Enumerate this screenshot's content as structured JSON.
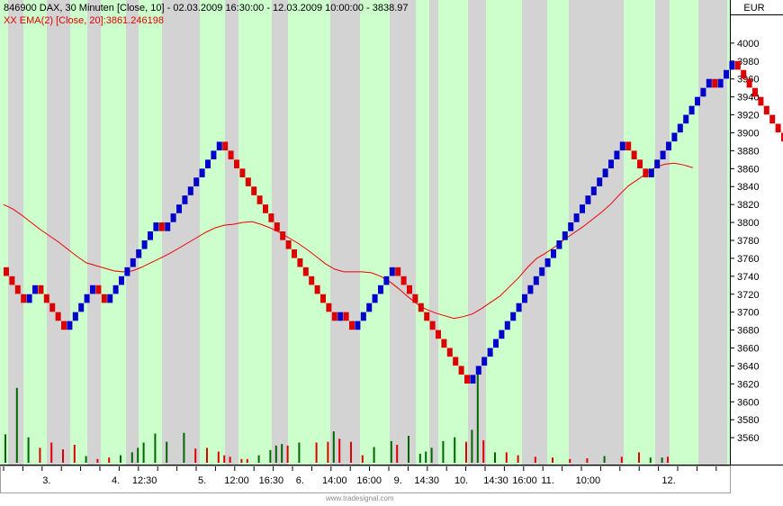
{
  "header": {
    "instrument": "846900  DAX, 30 Minuten [Close, 10] - 02.03.2009 16:30:00 - 12.03.2009 10:00:00 - 3838.97",
    "indicator": "XX EMA(2) [Close, 20]:3861.246198"
  },
  "currency": "EUR",
  "footer": "www.tradesignal.com",
  "colors": {
    "up_brick": "#0000cc",
    "down_brick": "#dd0000",
    "ema_line": "#ee0000",
    "band_light": "#ccffcc",
    "band_gray": "#d3d3d3",
    "volume_up": "#006600",
    "volume_down": "#dd0000"
  },
  "chart_data": {
    "type": "renko",
    "box_size": 10,
    "ylim": [
      3530,
      4030
    ],
    "yticks": [
      3560,
      3580,
      3600,
      3620,
      3640,
      3660,
      3680,
      3700,
      3720,
      3740,
      3760,
      3780,
      3800,
      3820,
      3840,
      3860,
      3880,
      3900,
      3920,
      3940,
      3960,
      3980,
      4000
    ],
    "xtick_labels": [
      {
        "label": "3.",
        "brick": 7
      },
      {
        "label": "4.",
        "brick": 19
      },
      {
        "label": "12:30",
        "brick": 24
      },
      {
        "label": "5.",
        "brick": 34
      },
      {
        "label": "12:00",
        "brick": 40
      },
      {
        "label": "16:30",
        "brick": 46
      },
      {
        "label": "6.",
        "brick": 51
      },
      {
        "label": "14:00",
        "brick": 57
      },
      {
        "label": "16:00",
        "brick": 63
      },
      {
        "label": "9.",
        "brick": 68
      },
      {
        "label": "14:30",
        "brick": 73
      },
      {
        "label": "10.",
        "brick": 79
      },
      {
        "label": "14:30",
        "brick": 85
      },
      {
        "label": "16:00",
        "brick": 90
      },
      {
        "label": "11.",
        "brick": 94
      },
      {
        "label": "10:00",
        "brick": 101
      },
      {
        "label": "12.",
        "brick": 115
      }
    ],
    "bricks": [
      3740,
      3730,
      3720,
      3710,
      3720,
      3730,
      3720,
      3710,
      3700,
      3690,
      3680,
      3690,
      3700,
      3710,
      3720,
      3730,
      3720,
      3710,
      3720,
      3730,
      3740,
      3750,
      3760,
      3770,
      3780,
      3790,
      3800,
      3790,
      3800,
      3810,
      3820,
      3830,
      3840,
      3850,
      3860,
      3870,
      3880,
      3890,
      3880,
      3870,
      3860,
      3850,
      3840,
      3830,
      3820,
      3810,
      3800,
      3790,
      3780,
      3770,
      3760,
      3750,
      3740,
      3730,
      3720,
      3710,
      3700,
      3690,
      3700,
      3690,
      3680,
      3690,
      3700,
      3710,
      3720,
      3730,
      3740,
      3750,
      3740,
      3730,
      3720,
      3710,
      3700,
      3690,
      3680,
      3670,
      3660,
      3650,
      3640,
      3630,
      3620,
      3630,
      3640,
      3650,
      3660,
      3670,
      3680,
      3690,
      3700,
      3710,
      3720,
      3730,
      3740,
      3750,
      3760,
      3770,
      3780,
      3790,
      3800,
      3810,
      3820,
      3830,
      3840,
      3850,
      3860,
      3870,
      3880,
      3890,
      3880,
      3870,
      3860,
      3850,
      3860,
      3870,
      3880,
      3890,
      3900,
      3910,
      3920,
      3930,
      3940,
      3950,
      3960,
      3950,
      3960,
      3970,
      3980,
      3970,
      3960,
      3950,
      3940,
      3930,
      3920,
      3910,
      3900,
      3890,
      3880,
      3870,
      3860,
      3850
    ],
    "ema": [
      3820,
      3815,
      3808,
      3800,
      3792,
      3785,
      3778,
      3770,
      3762,
      3755,
      3752,
      3749,
      3746,
      3745,
      3746,
      3750,
      3755,
      3760,
      3765,
      3771,
      3777,
      3783,
      3789,
      3794,
      3797,
      3798,
      3800,
      3801,
      3798,
      3794,
      3789,
      3783,
      3777,
      3770,
      3762,
      3754,
      3748,
      3745,
      3745,
      3745,
      3744,
      3740,
      3734,
      3726,
      3717,
      3709,
      3703,
      3699,
      3696,
      3693,
      3695,
      3698,
      3704,
      3711,
      3718,
      3728,
      3738,
      3750,
      3760,
      3766,
      3773,
      3781,
      3788,
      3795,
      3803,
      3811,
      3820,
      3831,
      3841,
      3848,
      3855,
      3862,
      3865,
      3866,
      3864,
      3861
    ],
    "volume": [
      {
        "brick": 0,
        "v": 38,
        "up": true
      },
      {
        "brick": 2,
        "v": 100,
        "up": true
      },
      {
        "brick": 4,
        "v": 34,
        "up": true
      },
      {
        "brick": 6,
        "v": 20,
        "up": false
      },
      {
        "brick": 8,
        "v": 27,
        "up": false
      },
      {
        "brick": 10,
        "v": 18,
        "up": false
      },
      {
        "brick": 12,
        "v": 24,
        "up": false
      },
      {
        "brick": 14,
        "v": 9,
        "up": true
      },
      {
        "brick": 16,
        "v": 5,
        "up": false
      },
      {
        "brick": 18,
        "v": 7,
        "up": false
      },
      {
        "brick": 20,
        "v": 10,
        "up": true
      },
      {
        "brick": 22,
        "v": 14,
        "up": true
      },
      {
        "brick": 23,
        "v": 20,
        "up": true
      },
      {
        "brick": 24,
        "v": 27,
        "up": true
      },
      {
        "brick": 26,
        "v": 39,
        "up": true
      },
      {
        "brick": 28,
        "v": 28,
        "up": true
      },
      {
        "brick": 31,
        "v": 40,
        "up": true
      },
      {
        "brick": 33,
        "v": 19,
        "up": false
      },
      {
        "brick": 35,
        "v": 20,
        "up": false
      },
      {
        "brick": 37,
        "v": 15,
        "up": false
      },
      {
        "brick": 38,
        "v": 10,
        "up": false
      },
      {
        "brick": 39,
        "v": 8,
        "up": false
      },
      {
        "brick": 41,
        "v": 5,
        "up": false
      },
      {
        "brick": 42,
        "v": 5,
        "up": false
      },
      {
        "brick": 44,
        "v": 10,
        "up": true
      },
      {
        "brick": 46,
        "v": 17,
        "up": true
      },
      {
        "brick": 47,
        "v": 23,
        "up": true
      },
      {
        "brick": 48,
        "v": 25,
        "up": true
      },
      {
        "brick": 49,
        "v": 23,
        "up": false
      },
      {
        "brick": 51,
        "v": 27,
        "up": true
      },
      {
        "brick": 54,
        "v": 27,
        "up": false
      },
      {
        "brick": 56,
        "v": 28,
        "up": false
      },
      {
        "brick": 57,
        "v": 42,
        "up": true
      },
      {
        "brick": 58,
        "v": 32,
        "up": false
      },
      {
        "brick": 60,
        "v": 28,
        "up": false
      },
      {
        "brick": 62,
        "v": 10,
        "up": false
      },
      {
        "brick": 64,
        "v": 21,
        "up": true
      },
      {
        "brick": 67,
        "v": 29,
        "up": true
      },
      {
        "brick": 68,
        "v": 24,
        "up": false
      },
      {
        "brick": 70,
        "v": 36,
        "up": true
      },
      {
        "brick": 72,
        "v": 12,
        "up": true
      },
      {
        "brick": 73,
        "v": 15,
        "up": true
      },
      {
        "brick": 74,
        "v": 20,
        "up": true
      },
      {
        "brick": 76,
        "v": 29,
        "up": true
      },
      {
        "brick": 78,
        "v": 34,
        "up": true
      },
      {
        "brick": 80,
        "v": 28,
        "up": false
      },
      {
        "brick": 81,
        "v": 44,
        "up": true
      },
      {
        "brick": 82,
        "v": 125,
        "up": true
      },
      {
        "brick": 83,
        "v": 30,
        "up": false
      },
      {
        "brick": 85,
        "v": 14,
        "up": true
      },
      {
        "brick": 87,
        "v": 14,
        "up": false
      },
      {
        "brick": 89,
        "v": 10,
        "up": false
      },
      {
        "brick": 92,
        "v": 8,
        "up": false
      },
      {
        "brick": 95,
        "v": 7,
        "up": false
      },
      {
        "brick": 98,
        "v": 5,
        "up": false
      },
      {
        "brick": 101,
        "v": 6,
        "up": false
      },
      {
        "brick": 104,
        "v": 9,
        "up": true
      },
      {
        "brick": 107,
        "v": 8,
        "up": false
      },
      {
        "brick": 110,
        "v": 14,
        "up": false
      },
      {
        "brick": 112,
        "v": 7,
        "up": true
      },
      {
        "brick": 114,
        "v": 7,
        "up": true
      },
      {
        "brick": 115,
        "v": 8,
        "up": false
      }
    ]
  }
}
